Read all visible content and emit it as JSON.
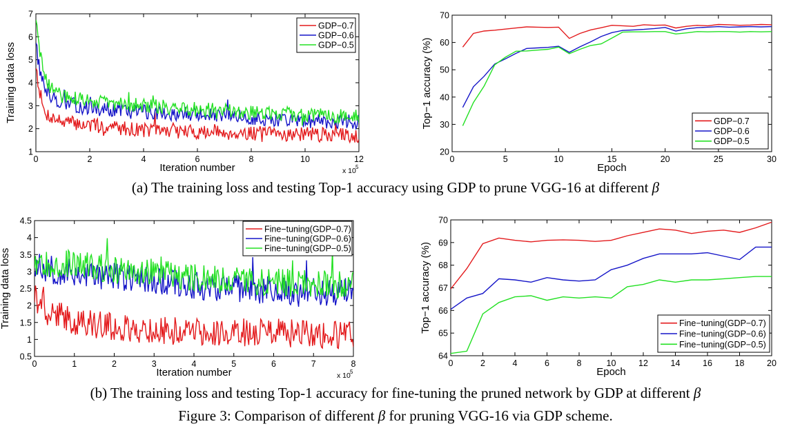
{
  "colors": {
    "red": "#e31a1c",
    "blue": "#1515c8",
    "green": "#22e022"
  },
  "captions": {
    "a_prefix": "(a)  The training loss and testing Top-1 accuracy using GDP to prune VGG-16 at different ",
    "b_prefix": "(b)  The training loss and testing Top-1 accuracy for fine-tuning the pruned network by GDP at different ",
    "fig_prefix": "Figure 3: Comparison of different ",
    "fig_suffix": " for pruning VGG-16 via GDP scheme.",
    "beta": "β"
  },
  "chart_data": [
    {
      "id": "a_loss",
      "type": "line",
      "xlabel": "Iteration number",
      "ylabel": "Training data loss",
      "x_multiplier": "x 10",
      "x_exponent": "5",
      "xlim": [
        0,
        12
      ],
      "ylim": [
        1,
        7
      ],
      "xticks": [
        0,
        2,
        4,
        6,
        8,
        10,
        12
      ],
      "yticks": [
        1,
        2,
        3,
        4,
        5,
        6,
        7
      ],
      "grid": false,
      "legend_position": "top-right",
      "noise": 0.32,
      "series": [
        {
          "name": "GDP−0.7",
          "color": "#e31a1c",
          "seed": 7,
          "curve": [
            [
              0,
              4.8
            ],
            [
              0.1,
              3.9
            ],
            [
              0.3,
              2.7
            ],
            [
              0.6,
              2.5
            ],
            [
              1.0,
              2.3
            ],
            [
              2,
              2.15
            ],
            [
              4,
              1.95
            ],
            [
              6,
              1.85
            ],
            [
              8,
              1.8
            ],
            [
              10,
              1.75
            ],
            [
              12,
              1.7
            ]
          ]
        },
        {
          "name": "GDP−0.6",
          "color": "#1515c8",
          "seed": 13,
          "curve": [
            [
              0,
              5.9
            ],
            [
              0.1,
              4.8
            ],
            [
              0.3,
              3.8
            ],
            [
              0.6,
              3.4
            ],
            [
              1.0,
              3.1
            ],
            [
              2,
              2.9
            ],
            [
              4,
              2.75
            ],
            [
              6,
              2.6
            ],
            [
              8,
              2.45
            ],
            [
              10,
              2.35
            ],
            [
              12,
              2.3
            ]
          ]
        },
        {
          "name": "GDP−0.5",
          "color": "#22e022",
          "seed": 29,
          "curve": [
            [
              0,
              6.9
            ],
            [
              0.1,
              5.6
            ],
            [
              0.3,
              4.3
            ],
            [
              0.6,
              3.7
            ],
            [
              1.0,
              3.4
            ],
            [
              2,
              3.2
            ],
            [
              4,
              3.0
            ],
            [
              6,
              2.85
            ],
            [
              8,
              2.7
            ],
            [
              10,
              2.6
            ],
            [
              12,
              2.55
            ]
          ]
        }
      ]
    },
    {
      "id": "a_acc",
      "type": "line",
      "xlabel": "Epoch",
      "ylabel": "Top−1 accuracy (%)",
      "xlim": [
        0,
        30
      ],
      "ylim": [
        20,
        70
      ],
      "xticks": [
        0,
        5,
        10,
        15,
        20,
        25,
        30
      ],
      "yticks": [
        20,
        30,
        40,
        50,
        60,
        70
      ],
      "grid": false,
      "legend_position": "bottom-right",
      "x": [
        1,
        2,
        3,
        4,
        5,
        6,
        7,
        8,
        9,
        10,
        11,
        12,
        13,
        14,
        15,
        16,
        17,
        18,
        19,
        20,
        21,
        22,
        23,
        24,
        25,
        26,
        27,
        28,
        29,
        30
      ],
      "series": [
        {
          "name": "GDP−0.7",
          "color": "#e31a1c",
          "values": [
            58.3,
            63.3,
            64.2,
            64.5,
            64.9,
            65.3,
            65.7,
            65.6,
            65.5,
            65.6,
            61.5,
            63.3,
            64.6,
            65.4,
            66.3,
            66.1,
            65.9,
            66.5,
            66.3,
            66.4,
            65.3,
            65.9,
            66.3,
            66.1,
            66.6,
            66.5,
            66.3,
            66.4,
            66.6,
            66.5
          ]
        },
        {
          "name": "GDP−0.6",
          "color": "#1515c8",
          "values": [
            36.2,
            43.8,
            47.6,
            52.1,
            54.0,
            56.0,
            57.8,
            58.0,
            58.2,
            58.6,
            56.4,
            58.4,
            60.2,
            62.2,
            63.6,
            64.4,
            64.6,
            64.8,
            65.1,
            65.5,
            64.2,
            65.0,
            65.4,
            65.6,
            65.8,
            65.6,
            65.7,
            65.8,
            65.7,
            65.8
          ]
        },
        {
          "name": "GDP−0.5",
          "color": "#22e022",
          "values": [
            29.5,
            38.0,
            44.0,
            51.8,
            54.6,
            56.8,
            56.9,
            57.2,
            57.5,
            58.3,
            55.9,
            57.5,
            58.9,
            59.5,
            61.6,
            63.8,
            63.9,
            63.9,
            64.0,
            64.0,
            63.1,
            63.5,
            64.0,
            63.9,
            64.0,
            64.0,
            63.8,
            64.0,
            63.9,
            64.0
          ]
        }
      ]
    },
    {
      "id": "b_loss",
      "type": "line",
      "xlabel": "Iteration number",
      "ylabel": "Training data loss",
      "x_multiplier": "x 10",
      "x_exponent": "5",
      "xlim": [
        0,
        8
      ],
      "ylim": [
        0.5,
        4.5
      ],
      "xticks": [
        0,
        1,
        2,
        3,
        4,
        5,
        6,
        7,
        8
      ],
      "yticks": [
        0.5,
        1,
        1.5,
        2,
        2.5,
        3,
        3.5,
        4,
        4.5
      ],
      "grid": false,
      "legend_position": "top-right",
      "noise": 0.42,
      "series": [
        {
          "name": "Fine−tuning(GDP−0.7)",
          "color": "#e31a1c",
          "seed": 41,
          "curve": [
            [
              0,
              2.3
            ],
            [
              0.3,
              1.8
            ],
            [
              1,
              1.55
            ],
            [
              2,
              1.35
            ],
            [
              3,
              1.25
            ],
            [
              4,
              1.25
            ],
            [
              5,
              1.2
            ],
            [
              6,
              1.2
            ],
            [
              7,
              1.15
            ],
            [
              8,
              1.15
            ]
          ]
        },
        {
          "name": "Fine−tuning(GDP−0.6)",
          "color": "#1515c8",
          "seed": 53,
          "curve": [
            [
              0,
              3.2
            ],
            [
              0.5,
              3.0
            ],
            [
              1,
              2.95
            ],
            [
              2,
              2.85
            ],
            [
              3,
              2.75
            ],
            [
              4,
              2.6
            ],
            [
              5,
              2.5
            ],
            [
              6,
              2.45
            ],
            [
              7,
              2.4
            ],
            [
              8,
              2.4
            ]
          ]
        },
        {
          "name": "Fine−tuning(GDP−0.5)",
          "color": "#22e022",
          "seed": 67,
          "curve": [
            [
              0,
              3.3
            ],
            [
              1,
              3.2
            ],
            [
              2,
              3.05
            ],
            [
              3,
              2.95
            ],
            [
              4,
              2.85
            ],
            [
              5,
              2.75
            ],
            [
              6,
              2.7
            ],
            [
              7,
              2.65
            ],
            [
              8,
              2.6
            ]
          ]
        }
      ]
    },
    {
      "id": "b_acc",
      "type": "line",
      "xlabel": "Epoch",
      "ylabel": "Top−1 accuracy (%)",
      "xlim": [
        0,
        20
      ],
      "ylim": [
        64,
        70
      ],
      "xticks": [
        0,
        2,
        4,
        6,
        8,
        10,
        12,
        14,
        16,
        18,
        20
      ],
      "yticks": [
        64,
        65,
        66,
        67,
        68,
        69,
        70
      ],
      "grid": false,
      "legend_position": "bottom-right",
      "x": [
        0,
        1,
        2,
        3,
        4,
        5,
        6,
        7,
        8,
        9,
        10,
        11,
        12,
        13,
        14,
        15,
        16,
        17,
        18,
        19,
        20
      ],
      "series": [
        {
          "name": "Fine−tuning(GDP−0.7)",
          "color": "#e31a1c",
          "values": [
            66.95,
            67.85,
            68.95,
            69.2,
            69.1,
            69.03,
            69.1,
            69.12,
            69.1,
            69.05,
            69.1,
            69.3,
            69.45,
            69.6,
            69.55,
            69.4,
            69.5,
            69.55,
            69.45,
            69.65,
            69.9
          ]
        },
        {
          "name": "Fine−tuning(GDP−0.6)",
          "color": "#1515c8",
          "values": [
            66.05,
            66.55,
            66.75,
            67.4,
            67.35,
            67.25,
            67.45,
            67.35,
            67.3,
            67.35,
            67.8,
            68.0,
            68.3,
            68.5,
            68.5,
            68.5,
            68.55,
            68.4,
            68.25,
            68.8,
            68.8
          ]
        },
        {
          "name": "Fine−tuning(GDP−0.5)",
          "color": "#22e022",
          "values": [
            64.1,
            64.2,
            65.85,
            66.35,
            66.6,
            66.65,
            66.45,
            66.6,
            66.55,
            66.6,
            66.55,
            67.05,
            67.15,
            67.35,
            67.25,
            67.35,
            67.35,
            67.4,
            67.45,
            67.5,
            67.5
          ]
        }
      ]
    }
  ]
}
